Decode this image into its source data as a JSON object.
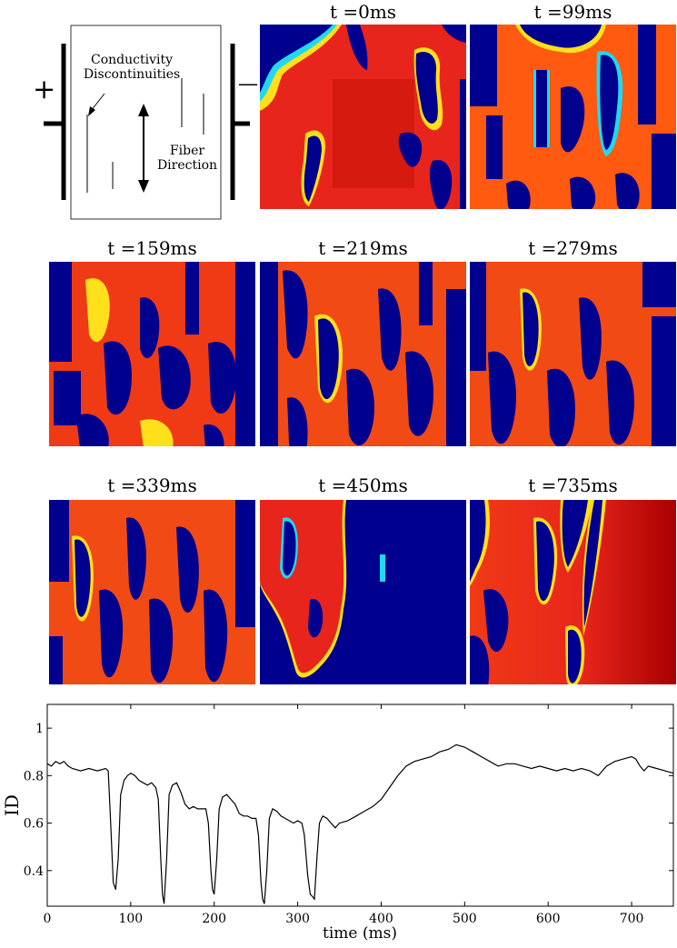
{
  "schematic": {
    "conductivity_line1": "Conductivity",
    "conductivity_line2": "Discontinuities",
    "fiber_line1": "Fiber",
    "fiber_line2": "Direction",
    "plus_sign": "+",
    "minus_sign": "—"
  },
  "panels": [
    {
      "title": "t =0ms"
    },
    {
      "title": "t =99ms"
    },
    {
      "title": "t =159ms"
    },
    {
      "title": "t =219ms"
    },
    {
      "title": "t =279ms"
    },
    {
      "title": "t =339ms"
    },
    {
      "title": "t =450ms"
    },
    {
      "title": "t =735ms"
    }
  ],
  "colors": {
    "red": "#e8251c",
    "dark_red": "#a80000",
    "orange": "#ff7a10",
    "yellow": "#ffe01a",
    "cyan": "#22d8f0",
    "blue": "#00008f",
    "line": "#000000"
  },
  "chart_data": {
    "type": "line",
    "xlabel": "time (ms)",
    "ylabel": "ID",
    "xlim": [
      0,
      750
    ],
    "ylim": [
      0.25,
      1.1
    ],
    "xticks": [
      0,
      100,
      200,
      300,
      400,
      500,
      600,
      700
    ],
    "yticks": [
      0.4,
      0.6,
      0.8,
      1
    ],
    "xtick_labels": [
      "0",
      "100",
      "200",
      "300",
      "400",
      "500",
      "600",
      "700"
    ],
    "ytick_labels": [
      "0.4",
      "0.6",
      "0.8",
      "1"
    ],
    "x": [
      0,
      5,
      10,
      15,
      20,
      25,
      30,
      40,
      50,
      60,
      70,
      73,
      76,
      79,
      82,
      85,
      88,
      92,
      96,
      100,
      105,
      110,
      115,
      120,
      125,
      130,
      133,
      136,
      138,
      140,
      143,
      146,
      150,
      155,
      160,
      165,
      170,
      175,
      180,
      185,
      190,
      193,
      196,
      198,
      200,
      203,
      206,
      210,
      215,
      220,
      225,
      230,
      235,
      240,
      245,
      250,
      253,
      256,
      258,
      260,
      263,
      266,
      270,
      275,
      280,
      285,
      290,
      295,
      300,
      305,
      308,
      312,
      315,
      318,
      320,
      323,
      326,
      330,
      335,
      340,
      345,
      350,
      360,
      370,
      380,
      390,
      400,
      410,
      420,
      430,
      440,
      450,
      460,
      470,
      480,
      490,
      500,
      510,
      520,
      530,
      540,
      550,
      560,
      570,
      580,
      590,
      600,
      610,
      620,
      630,
      640,
      650,
      660,
      670,
      680,
      690,
      700,
      705,
      710,
      715,
      720,
      730,
      740,
      750
    ],
    "y": [
      0.85,
      0.84,
      0.86,
      0.85,
      0.86,
      0.84,
      0.83,
      0.82,
      0.83,
      0.82,
      0.83,
      0.82,
      0.6,
      0.35,
      0.32,
      0.45,
      0.72,
      0.78,
      0.8,
      0.81,
      0.8,
      0.78,
      0.77,
      0.76,
      0.77,
      0.75,
      0.7,
      0.45,
      0.3,
      0.26,
      0.45,
      0.72,
      0.76,
      0.77,
      0.73,
      0.68,
      0.66,
      0.67,
      0.66,
      0.66,
      0.66,
      0.6,
      0.4,
      0.32,
      0.3,
      0.45,
      0.66,
      0.71,
      0.72,
      0.7,
      0.68,
      0.64,
      0.63,
      0.63,
      0.62,
      0.62,
      0.55,
      0.35,
      0.28,
      0.26,
      0.4,
      0.62,
      0.66,
      0.65,
      0.63,
      0.62,
      0.61,
      0.6,
      0.61,
      0.6,
      0.55,
      0.38,
      0.3,
      0.29,
      0.28,
      0.45,
      0.6,
      0.63,
      0.62,
      0.6,
      0.58,
      0.6,
      0.61,
      0.63,
      0.65,
      0.67,
      0.7,
      0.75,
      0.8,
      0.84,
      0.86,
      0.87,
      0.88,
      0.9,
      0.91,
      0.93,
      0.92,
      0.9,
      0.88,
      0.86,
      0.84,
      0.85,
      0.85,
      0.84,
      0.83,
      0.84,
      0.83,
      0.82,
      0.83,
      0.82,
      0.83,
      0.82,
      0.8,
      0.84,
      0.86,
      0.87,
      0.88,
      0.87,
      0.84,
      0.82,
      0.84,
      0.83,
      0.82,
      0.81
    ]
  }
}
